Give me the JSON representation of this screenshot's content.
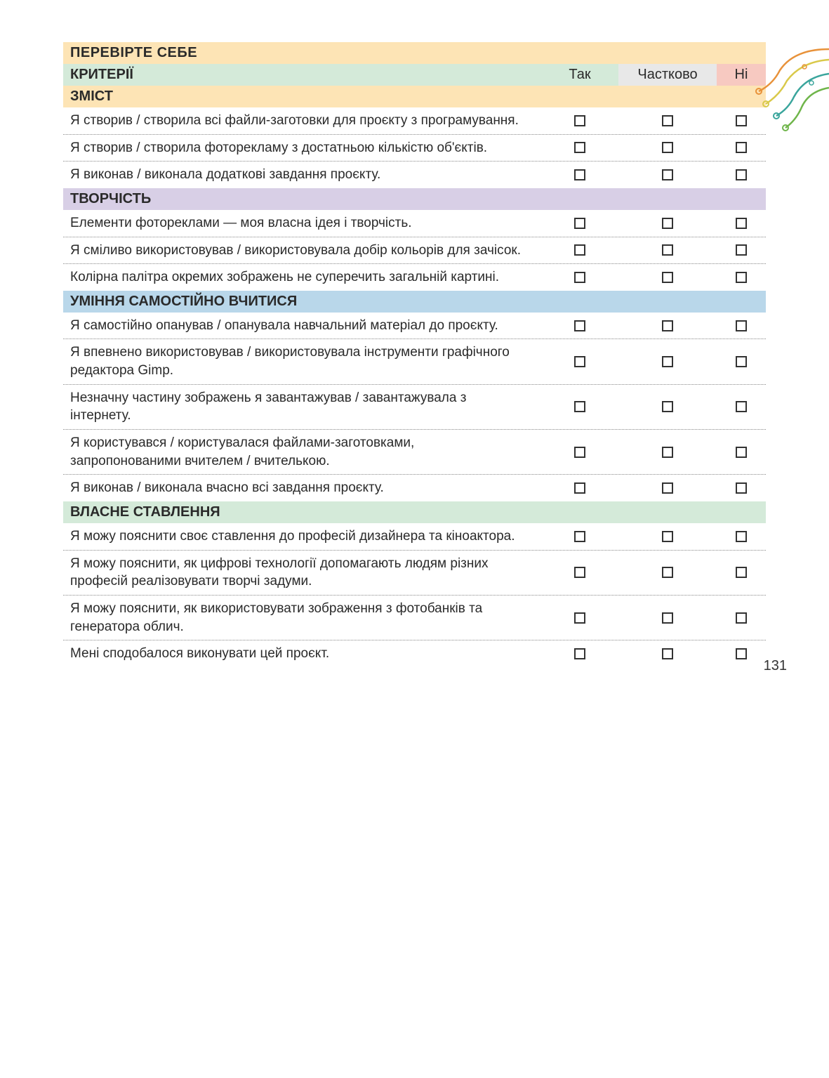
{
  "page_number": "131",
  "title_band": "ПЕРЕВІРТЕ СЕБЕ",
  "header": {
    "criteria": "КРИТЕРІЇ",
    "yes": "Так",
    "partial": "Частково",
    "no": "Ні"
  },
  "colors": {
    "title_band": "#fde4b5",
    "criteria_band": "#d4ead9",
    "partial_band": "#e8e8e8",
    "no_band": "#f7c9c1",
    "zmist_band": "#fde4b5",
    "tvorchist_band": "#d8cfe6",
    "uminnya_band": "#b9d7ea",
    "vlasne_band": "#d4ead9",
    "text": "#2a2a2a",
    "dotted_border": "#888888",
    "deco_orange": "#e8923a",
    "deco_yellow": "#d9c94a",
    "deco_teal": "#3aa59c",
    "deco_green": "#6fb54a"
  },
  "sections": [
    {
      "id": "zmist",
      "title": "ЗМІСТ",
      "band_class": "band-zmist",
      "rows": [
        "Я створив / створила всі файли-заготовки для проєкту з програмування.",
        "Я створив / створила фоторекламу з достатньою кількістю об'єктів.",
        "Я виконав / виконала додаткові завдання проєкту."
      ]
    },
    {
      "id": "tvorchist",
      "title": "ТВОРЧІСТЬ",
      "band_class": "band-tvorchist",
      "rows": [
        "Елементи фотореклами — моя власна ідея і творчість.",
        "Я сміливо використовував / використовувала добір кольорів для зачісок.",
        "Колірна палітра окремих зображень не суперечить загальній картині."
      ]
    },
    {
      "id": "uminnya",
      "title": "УМІННЯ САМОСТІЙНО ВЧИТИСЯ",
      "band_class": "band-uminnya",
      "rows": [
        "Я самостійно опанував / опанувала навчальний матеріал до проєкту.",
        "Я впевнено використовував / використовувала інструменти графічного редактора Gimp.",
        "Незначну частину зображень я завантажував / завантажувала з інтернету.",
        "Я користувався / користувалася файлами-заготовками, запропонованими вчителем / вчителькою.",
        "Я виконав / виконала вчасно всі завдання проєкту."
      ]
    },
    {
      "id": "vlasne",
      "title": "ВЛАСНЕ СТАВЛЕННЯ",
      "band_class": "band-vlasne",
      "rows": [
        "Я можу пояснити своє ставлення до професій дизайнера та кіноактора.",
        "Я можу пояснити, як цифрові технології допомагають людям різних професій реалізовувати творчі задуми.",
        "Я можу пояснити, як використовувати зображення з фотобанків та генератора облич.",
        "Мені сподобалося виконувати цей проєкт."
      ]
    }
  ]
}
